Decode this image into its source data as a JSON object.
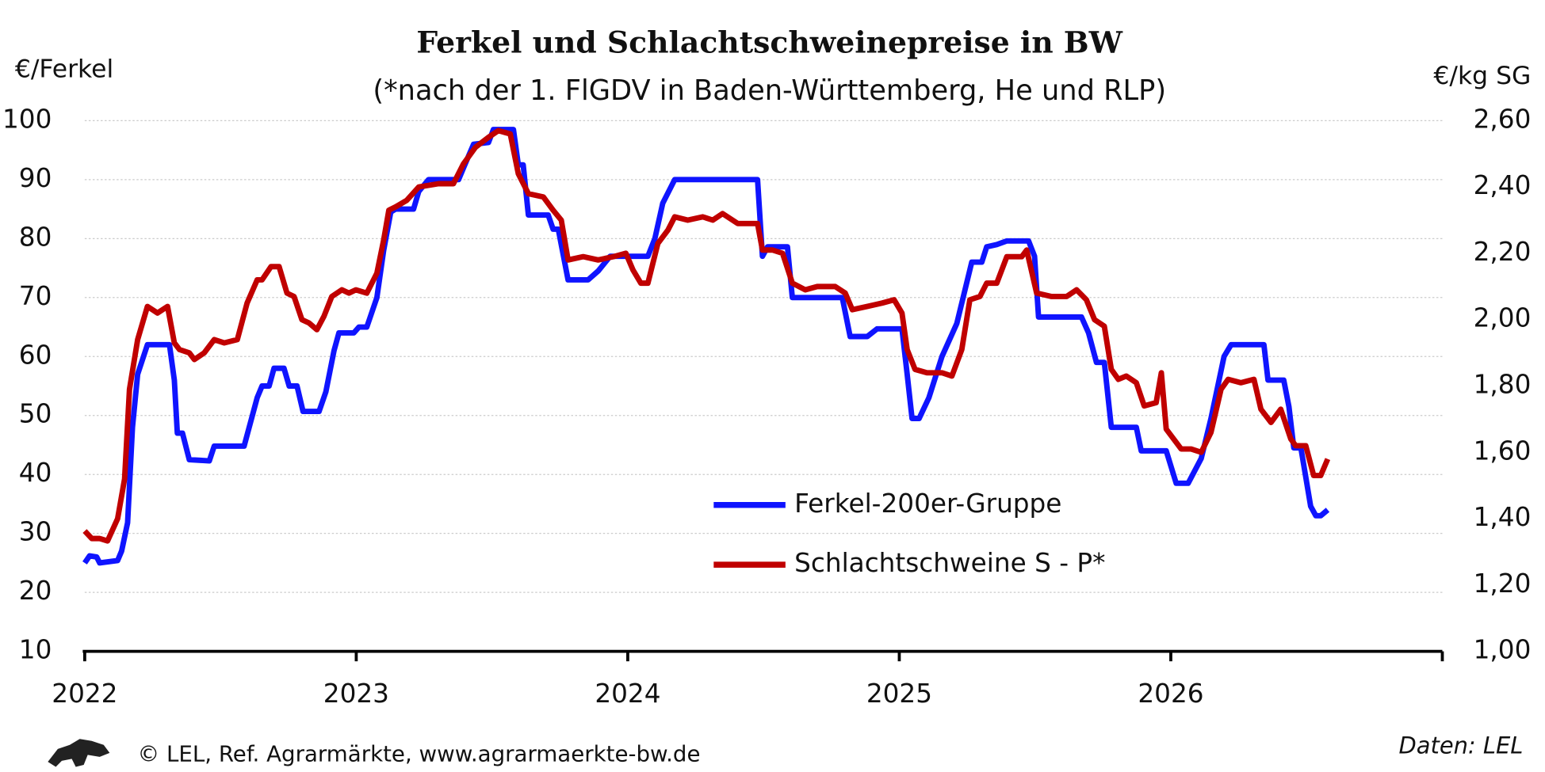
{
  "chart_data": {
    "type": "line",
    "title": "Ferkel und Schlachtschweinepreise in BW",
    "subtitle": "(*nach der 1. FlGDV in Baden-Württemberg, He und RLP)",
    "ylabel": "€/Ferkel",
    "y2label": "€/kg SG",
    "footer": "© LEL, Ref. Agrarmärkte, www.agrarmaerkte-bw.de",
    "source": "Daten: LEL",
    "xlim": [
      2022,
      2027
    ],
    "xticks": [
      2022,
      2023,
      2024,
      2025,
      2026
    ],
    "ylim": [
      10,
      100
    ],
    "yticks": [
      10,
      20,
      30,
      40,
      50,
      60,
      70,
      80,
      90,
      100
    ],
    "y2lim": [
      1.0,
      2.6
    ],
    "y2ticks": [
      {
        "value": 1.0,
        "label": "1,00"
      },
      {
        "value": 1.2,
        "label": "1,20"
      },
      {
        "value": 1.4,
        "label": "1,40"
      },
      {
        "value": 1.6,
        "label": "1,60"
      },
      {
        "value": 1.8,
        "label": "1,80"
      },
      {
        "value": 2.0,
        "label": "2,00"
      },
      {
        "value": 2.2,
        "label": "2,20"
      },
      {
        "value": 2.4,
        "label": "2,40"
      },
      {
        "value": 2.6,
        "label": "2,60"
      }
    ],
    "grid": true,
    "legend": "center",
    "series": [
      {
        "name": "Ferkel-200er-Gruppe",
        "color": "#0f14ff",
        "x": [
          2022.0,
          2022.018,
          2022.044,
          2022.055,
          2022.121,
          2022.136,
          2022.158,
          2022.176,
          2022.195,
          2022.231,
          2022.312,
          2022.33,
          2022.341,
          2022.36,
          2022.385,
          2022.459,
          2022.477,
          2022.587,
          2022.635,
          2022.653,
          2022.679,
          2022.697,
          2022.734,
          2022.753,
          2022.782,
          2022.804,
          2022.863,
          2022.888,
          2022.918,
          2022.936,
          2022.991,
          2023.01,
          2023.039,
          2023.076,
          2023.101,
          2023.127,
          2023.145,
          2023.211,
          2023.23,
          2023.266,
          2023.377,
          2023.395,
          2023.432,
          2023.487,
          2023.505,
          2023.579,
          2023.597,
          2023.615,
          2023.634,
          2023.707,
          2023.725,
          2023.744,
          2023.78,
          2023.854,
          2023.891,
          2023.935,
          2024.074,
          2024.1,
          2024.129,
          2024.173,
          2024.258,
          2024.276,
          2024.478,
          2024.496,
          2024.515,
          2024.588,
          2024.606,
          2024.79,
          2024.819,
          2024.882,
          2024.918,
          2025.01,
          2025.029,
          2025.047,
          2025.073,
          2025.109,
          2025.157,
          2025.212,
          2025.267,
          2025.304,
          2025.322,
          2025.359,
          2025.396,
          2025.476,
          2025.498,
          2025.513,
          2025.671,
          2025.697,
          2025.726,
          2025.755,
          2025.781,
          2025.873,
          2025.891,
          2025.983,
          2026.02,
          2026.064,
          2026.112,
          2026.148,
          2026.196,
          2026.222,
          2026.343,
          2026.358,
          2026.416,
          2026.435,
          2026.453,
          2026.479,
          2026.515,
          2026.534,
          2026.552,
          2026.578
        ],
        "values": [
          25,
          26.2,
          26,
          25,
          25.4,
          27,
          31.8,
          48,
          57,
          62,
          62,
          56,
          47,
          47,
          42.5,
          42.3,
          44.8,
          44.8,
          53,
          55,
          55,
          58,
          58,
          55,
          55,
          50.7,
          50.7,
          54,
          61,
          64,
          64,
          65,
          65,
          70,
          78,
          84.5,
          85,
          85,
          88,
          90,
          90,
          92,
          96,
          96.3,
          98.5,
          98.5,
          92.5,
          92.5,
          84,
          84,
          81.6,
          81.6,
          73,
          73,
          74.5,
          77,
          77,
          80,
          86,
          90,
          90,
          90,
          90,
          77,
          78.6,
          78.6,
          70,
          70,
          63.4,
          63.4,
          64.7,
          64.7,
          57,
          49.5,
          49.5,
          53,
          60,
          65.6,
          76,
          76,
          78.6,
          79,
          79.6,
          79.6,
          77,
          66.7,
          66.7,
          64,
          59,
          59,
          48,
          48,
          44,
          44,
          38.5,
          38.5,
          42.7,
          49.5,
          60,
          62,
          62,
          56,
          56,
          51.5,
          44.5,
          44.5,
          34.6,
          33,
          33,
          34
        ]
      },
      {
        "name": "Schlachtschweine S - P*",
        "color": "#c00000",
        "axis": "y2",
        "x": [
          2022.0,
          2022.026,
          2022.055,
          2022.084,
          2022.121,
          2022.147,
          2022.165,
          2022.195,
          2022.231,
          2022.268,
          2022.305,
          2022.33,
          2022.349,
          2022.385,
          2022.404,
          2022.44,
          2022.477,
          2022.514,
          2022.562,
          2022.598,
          2022.635,
          2022.653,
          2022.686,
          2022.716,
          2022.745,
          2022.771,
          2022.8,
          2022.826,
          2022.855,
          2022.881,
          2022.91,
          2022.947,
          2022.973,
          2022.999,
          2023.039,
          2023.076,
          2023.101,
          2023.12,
          2023.145,
          2023.186,
          2023.23,
          2023.303,
          2023.358,
          2023.395,
          2023.439,
          2023.487,
          2023.523,
          2023.567,
          2023.597,
          2023.634,
          2023.689,
          2023.725,
          2023.755,
          2023.78,
          2023.836,
          2023.891,
          2023.947,
          2023.993,
          2024.019,
          2024.048,
          2024.074,
          2024.111,
          2024.148,
          2024.173,
          2024.221,
          2024.276,
          2024.313,
          2024.349,
          2024.405,
          2024.478,
          2024.496,
          2024.533,
          2024.57,
          2024.606,
          2024.654,
          2024.698,
          2024.764,
          2024.801,
          2024.827,
          2024.882,
          2024.937,
          2024.981,
          2025.01,
          2025.029,
          2025.058,
          2025.102,
          2025.157,
          2025.194,
          2025.23,
          2025.26,
          2025.297,
          2025.322,
          2025.359,
          2025.396,
          2025.451,
          2025.469,
          2025.506,
          2025.561,
          2025.616,
          2025.653,
          2025.689,
          2025.719,
          2025.755,
          2025.781,
          2025.807,
          2025.836,
          2025.873,
          2025.902,
          2025.946,
          2025.965,
          2025.983,
          2026.038,
          2026.075,
          2026.112,
          2026.148,
          2026.185,
          2026.211,
          2026.258,
          2026.306,
          2026.332,
          2026.369,
          2026.405,
          2026.442,
          2026.46,
          2026.497,
          2026.526,
          2026.552,
          2026.578
        ],
        "values": [
          1.363,
          1.34,
          1.34,
          1.333,
          1.4,
          1.52,
          1.79,
          1.94,
          2.04,
          2.02,
          2.04,
          1.93,
          1.91,
          1.9,
          1.88,
          1.9,
          1.94,
          1.93,
          1.94,
          2.05,
          2.12,
          2.12,
          2.16,
          2.16,
          2.08,
          2.07,
          2.0,
          1.99,
          1.97,
          2.01,
          2.07,
          2.09,
          2.08,
          2.09,
          2.08,
          2.14,
          2.24,
          2.33,
          2.34,
          2.36,
          2.4,
          2.41,
          2.41,
          2.47,
          2.52,
          2.55,
          2.57,
          2.56,
          2.44,
          2.38,
          2.37,
          2.33,
          2.3,
          2.18,
          2.19,
          2.18,
          2.19,
          2.2,
          2.15,
          2.11,
          2.11,
          2.23,
          2.27,
          2.31,
          2.3,
          2.31,
          2.3,
          2.32,
          2.29,
          2.29,
          2.21,
          2.21,
          2.2,
          2.11,
          2.09,
          2.1,
          2.1,
          2.08,
          2.03,
          2.04,
          2.05,
          2.06,
          2.02,
          1.91,
          1.85,
          1.84,
          1.84,
          1.83,
          1.91,
          2.06,
          2.07,
          2.11,
          2.11,
          2.19,
          2.19,
          2.21,
          2.08,
          2.07,
          2.07,
          2.09,
          2.06,
          2.0,
          1.98,
          1.85,
          1.82,
          1.83,
          1.81,
          1.74,
          1.75,
          1.84,
          1.67,
          1.61,
          1.61,
          1.6,
          1.66,
          1.79,
          1.82,
          1.81,
          1.82,
          1.73,
          1.69,
          1.73,
          1.64,
          1.62,
          1.62,
          1.53,
          1.53,
          1.58
        ]
      }
    ]
  }
}
